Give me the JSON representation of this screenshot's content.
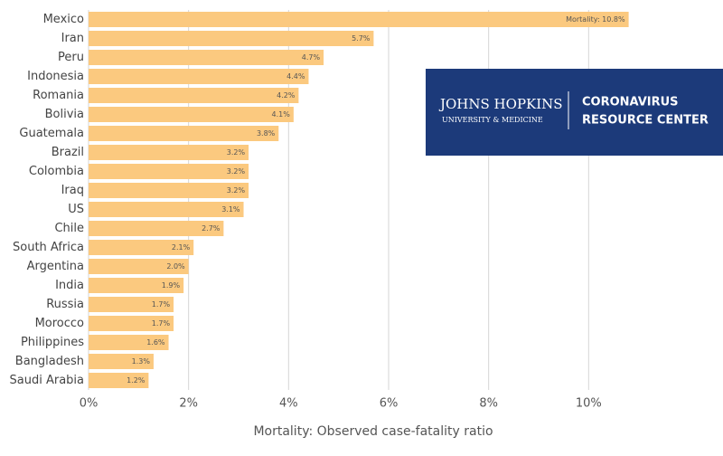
{
  "chart_data": {
    "type": "bar",
    "orientation": "horizontal",
    "categories": [
      "Mexico",
      "Iran",
      "Peru",
      "Indonesia",
      "Romania",
      "Bolivia",
      "Guatemala",
      "Brazil",
      "Colombia",
      "Iraq",
      "US",
      "Chile",
      "South Africa",
      "Argentina",
      "India",
      "Russia",
      "Morocco",
      "Philippines",
      "Bangladesh",
      "Saudi Arabia"
    ],
    "values": [
      10.8,
      5.7,
      4.7,
      4.4,
      4.2,
      4.1,
      3.8,
      3.2,
      3.2,
      3.2,
      3.1,
      2.7,
      2.1,
      2.0,
      1.9,
      1.7,
      1.7,
      1.6,
      1.3,
      1.2
    ],
    "value_labels": [
      "Mortality: 10.8%",
      "5.7%",
      "4.7%",
      "4.4%",
      "4.2%",
      "4.1%",
      "3.8%",
      "3.2%",
      "3.2%",
      "3.2%",
      "3.1%",
      "2.7%",
      "2.1%",
      "2.0%",
      "1.9%",
      "1.7%",
      "1.7%",
      "1.6%",
      "1.3%",
      "1.2%"
    ],
    "color": "#fbc97f",
    "xlabel": "Mortality: Observed case-fatality ratio",
    "xlim": [
      0,
      12
    ],
    "xticks": [
      {
        "value": 0,
        "label": "0%"
      },
      {
        "value": 2,
        "label": "2%"
      },
      {
        "value": 4,
        "label": "4%"
      },
      {
        "value": 6,
        "label": "6%"
      },
      {
        "value": 8,
        "label": "8%"
      },
      {
        "value": 10,
        "label": "10%"
      }
    ],
    "grid": true
  },
  "logo": {
    "line1": "JOHNS HOPKINS",
    "line2": "UNIVERSITY & MEDICINE",
    "line3": "CORONAVIRUS",
    "line4": "RESOURCE CENTER"
  }
}
